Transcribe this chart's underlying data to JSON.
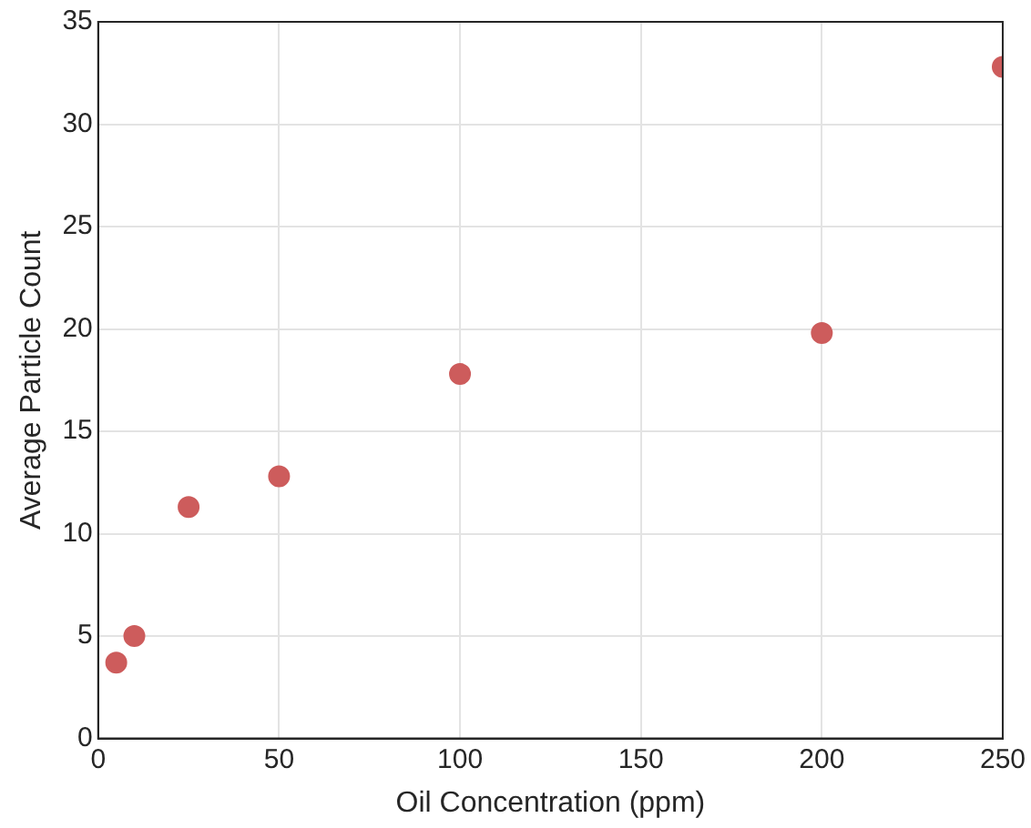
{
  "chart_data": {
    "type": "scatter",
    "xlabel": "Oil Concentration (ppm)",
    "ylabel": "Average Particle Count",
    "x": [
      5,
      10,
      25,
      50,
      100,
      200,
      250
    ],
    "series": [
      {
        "color": "#cd5c5c",
        "values": [
          3.7,
          5.0,
          11.3,
          12.8,
          17.8,
          19.8,
          32.8
        ]
      }
    ],
    "xlim": [
      0,
      250
    ],
    "xticks": [
      0,
      50,
      100,
      150,
      200,
      250
    ],
    "ylim": [
      0,
      35
    ],
    "yticks": [
      0,
      5,
      10,
      15,
      20,
      25,
      30,
      35
    ],
    "grid": true,
    "legend": false,
    "marker": "circle"
  }
}
